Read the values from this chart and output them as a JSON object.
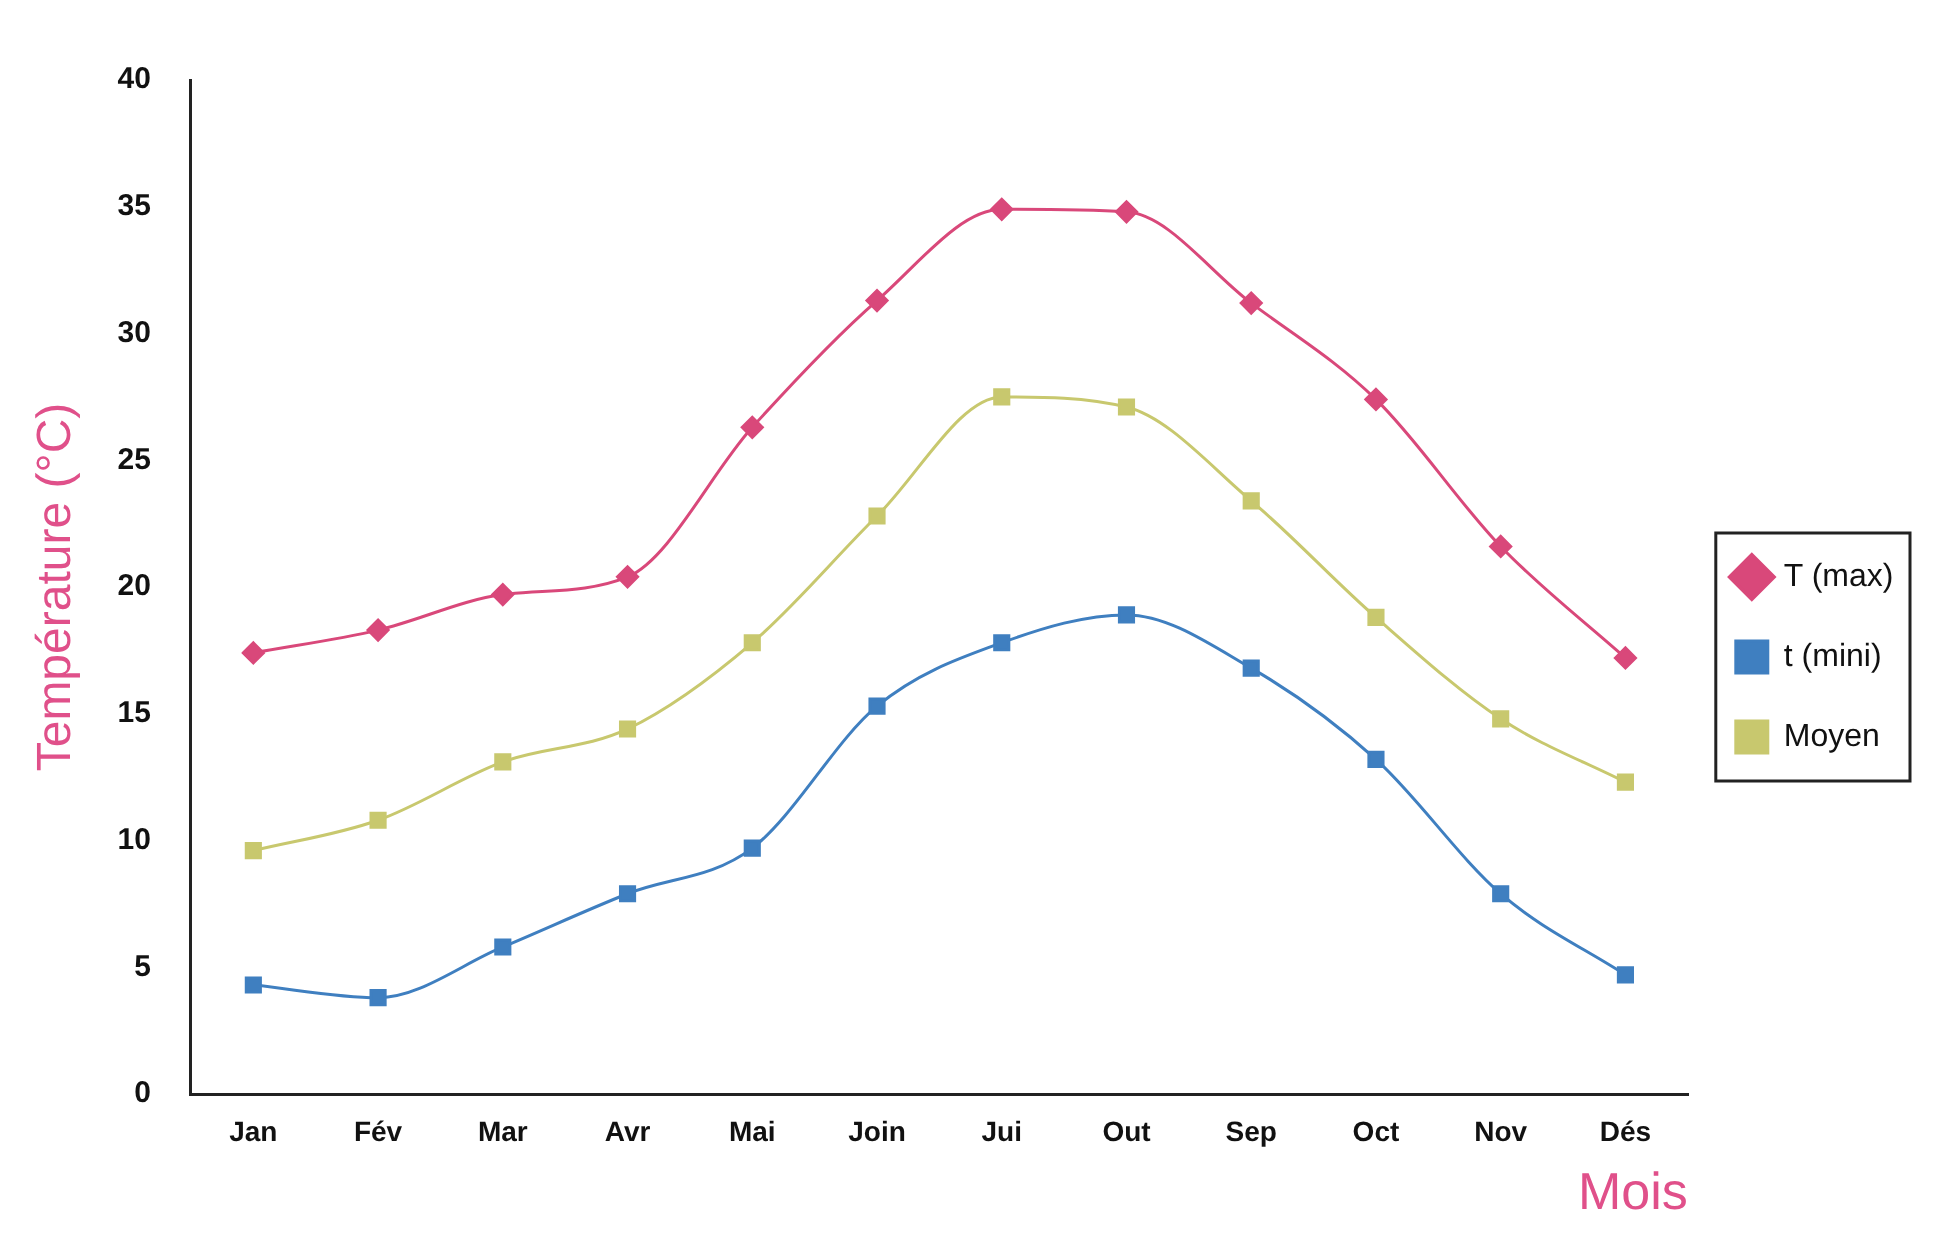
{
  "chart_data": {
    "type": "line",
    "xlabel": "Mois",
    "ylabel": "Température (°C)",
    "categories": [
      "Jan",
      "Fév",
      "Mar",
      "Avr",
      "Mai",
      "Join",
      "Jui",
      "Out",
      "Sep",
      "Oct",
      "Nov",
      "Dés"
    ],
    "series": [
      {
        "name": "T (max)",
        "color": "#d9487a",
        "marker": "diamond",
        "values": [
          17.4,
          18.3,
          19.7,
          20.4,
          26.3,
          31.3,
          34.9,
          34.8,
          31.2,
          27.4,
          21.6,
          17.2
        ]
      },
      {
        "name": "t (mini)",
        "color": "#3f7fc0",
        "marker": "square",
        "values": [
          4.3,
          3.8,
          5.8,
          7.9,
          9.7,
          15.3,
          17.8,
          18.9,
          16.8,
          13.2,
          7.9,
          4.7
        ]
      },
      {
        "name": "Moyen",
        "color": "#c8c86e",
        "marker": "square",
        "values": [
          9.6,
          10.8,
          13.1,
          14.4,
          17.8,
          22.8,
          27.5,
          27.1,
          23.4,
          18.8,
          14.8,
          12.3
        ]
      }
    ],
    "ylim": [
      0,
      40
    ],
    "yticks": [
      0,
      5,
      10,
      15,
      20,
      25,
      30,
      35,
      40
    ],
    "grid": false,
    "legend": "right",
    "line_style": "solid"
  }
}
